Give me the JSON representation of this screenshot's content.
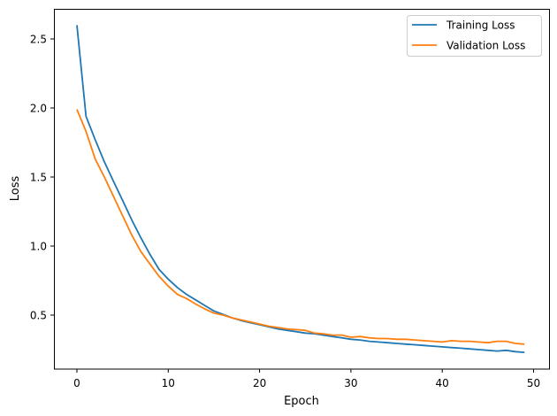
{
  "chart_data": {
    "type": "line",
    "title": "",
    "xlabel": "Epoch",
    "ylabel": "Loss",
    "xlim": [
      -2.45,
      51.45
    ],
    "ylim": [
      0.11,
      2.72
    ],
    "xticks": [
      0,
      10,
      20,
      30,
      40,
      50
    ],
    "yticks": [
      0.5,
      1.0,
      1.5,
      2.0,
      2.5
    ],
    "xtick_labels": [
      "0",
      "10",
      "20",
      "30",
      "40",
      "50"
    ],
    "ytick_labels": [
      "0.5",
      "1.0",
      "1.5",
      "2.0",
      "2.5"
    ],
    "grid": false,
    "legend_position": "upper right",
    "x": [
      0,
      1,
      2,
      3,
      4,
      5,
      6,
      7,
      8,
      9,
      10,
      11,
      12,
      13,
      14,
      15,
      16,
      17,
      18,
      19,
      20,
      21,
      22,
      23,
      24,
      25,
      26,
      27,
      28,
      29,
      30,
      31,
      32,
      33,
      34,
      35,
      36,
      37,
      38,
      39,
      40,
      41,
      42,
      43,
      44,
      45,
      46,
      47,
      48,
      49
    ],
    "series": [
      {
        "name": "Training Loss",
        "color": "#1f77b4",
        "values": [
          2.6,
          1.94,
          1.77,
          1.61,
          1.47,
          1.33,
          1.19,
          1.06,
          0.94,
          0.83,
          0.76,
          0.7,
          0.65,
          0.61,
          0.57,
          0.53,
          0.505,
          0.48,
          0.46,
          0.445,
          0.43,
          0.415,
          0.4,
          0.39,
          0.38,
          0.37,
          0.365,
          0.355,
          0.345,
          0.335,
          0.325,
          0.32,
          0.31,
          0.305,
          0.3,
          0.295,
          0.29,
          0.285,
          0.28,
          0.275,
          0.27,
          0.265,
          0.26,
          0.255,
          0.25,
          0.245,
          0.24,
          0.245,
          0.235,
          0.23
        ]
      },
      {
        "name": "Validation Loss",
        "color": "#ff7f0e",
        "values": [
          1.99,
          1.83,
          1.63,
          1.5,
          1.36,
          1.22,
          1.08,
          0.96,
          0.87,
          0.78,
          0.71,
          0.65,
          0.62,
          0.58,
          0.545,
          0.515,
          0.5,
          0.48,
          0.465,
          0.45,
          0.435,
          0.42,
          0.41,
          0.4,
          0.395,
          0.39,
          0.37,
          0.365,
          0.355,
          0.355,
          0.34,
          0.345,
          0.335,
          0.33,
          0.33,
          0.325,
          0.325,
          0.32,
          0.315,
          0.31,
          0.305,
          0.315,
          0.31,
          0.31,
          0.305,
          0.3,
          0.31,
          0.31,
          0.295,
          0.29
        ]
      }
    ]
  }
}
